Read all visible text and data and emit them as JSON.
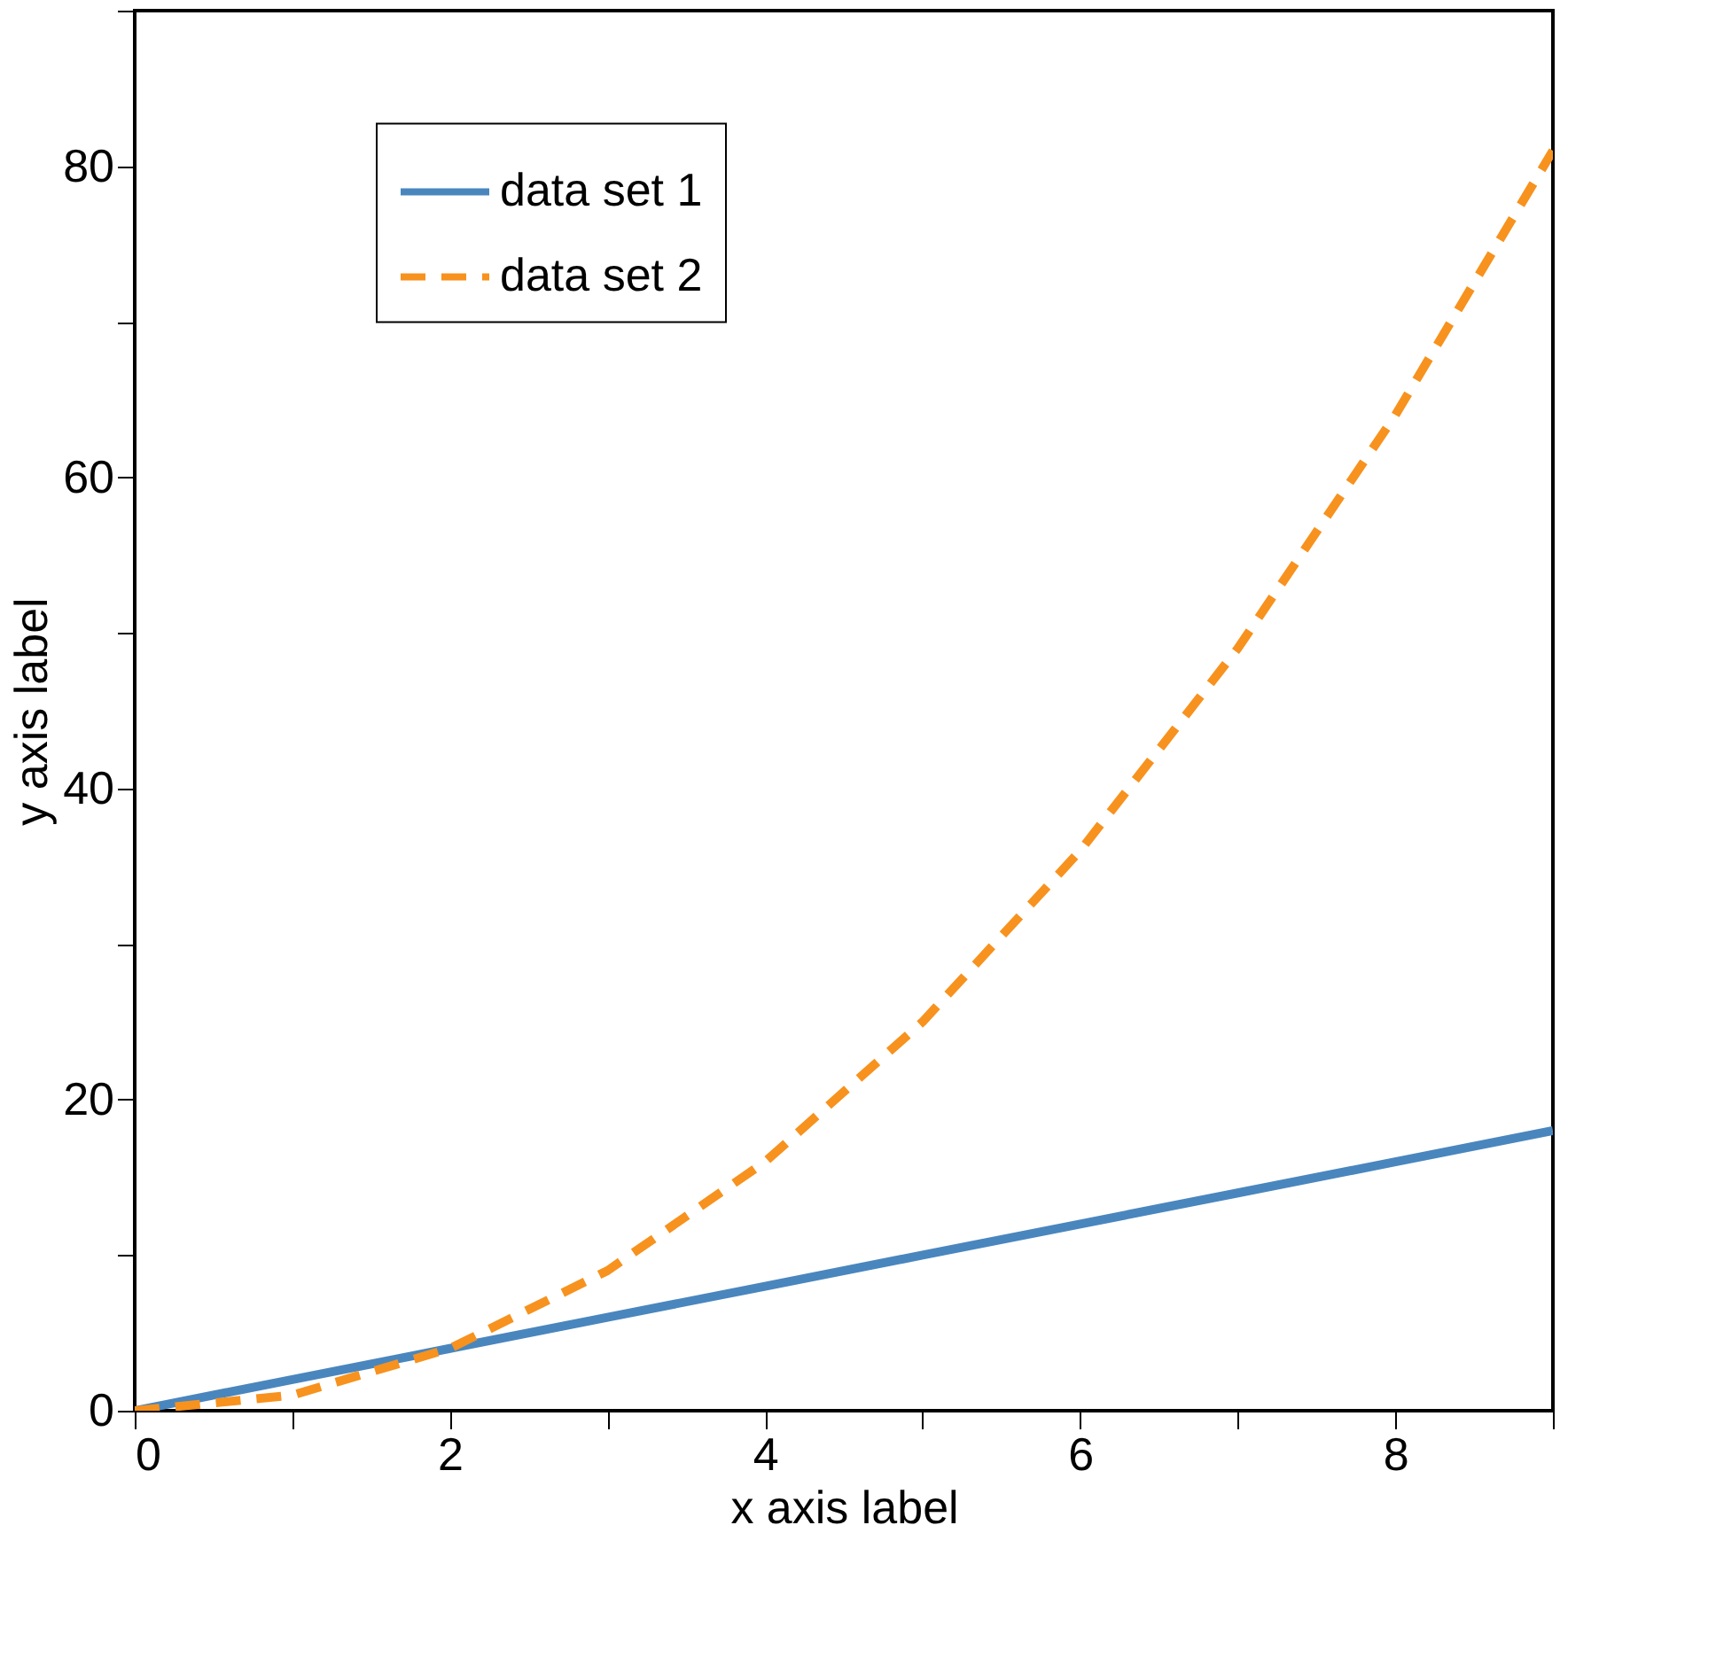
{
  "chart_data": {
    "type": "line",
    "xlabel": "x axis label",
    "ylabel": "y axis label",
    "x": [
      0,
      1,
      2,
      3,
      4,
      5,
      6,
      7,
      8,
      9
    ],
    "series": [
      {
        "name": "data set 1",
        "color": "#4a86be",
        "line_style": "solid",
        "values": [
          0,
          2,
          4,
          6,
          8,
          10,
          12,
          14,
          16,
          18
        ]
      },
      {
        "name": "data set 2",
        "color": "#f7921e",
        "line_style": "dashed",
        "values": [
          0,
          1,
          4,
          9,
          16,
          25,
          36,
          49,
          64,
          81
        ]
      }
    ],
    "xlim": [
      0,
      9
    ],
    "ylim": [
      0,
      90
    ],
    "xticks": [
      0,
      {
        "value": 1,
        "label": null
      },
      2,
      {
        "value": 3,
        "label": null
      },
      4,
      {
        "value": 5,
        "label": null
      },
      6,
      {
        "value": 7,
        "label": null
      },
      8,
      {
        "value": 9,
        "label": null
      }
    ],
    "yticks": [
      0,
      {
        "value": 10,
        "label": null
      },
      20,
      {
        "value": 30,
        "label": null
      },
      40,
      {
        "value": 50,
        "label": null
      },
      60,
      {
        "value": 70,
        "label": null
      },
      80,
      {
        "value": 90,
        "label": null
      }
    ],
    "grid": false,
    "legend": "top left"
  }
}
